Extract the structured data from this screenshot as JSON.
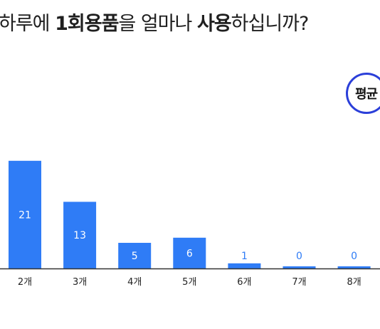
{
  "title": {
    "part1": "하루에 ",
    "part2": "1회용품",
    "part3": "을 얼마나 ",
    "part4": "사용",
    "part5": "하십니까?"
  },
  "badge": {
    "label": "평균"
  },
  "colors": {
    "bar": "#2f7cf6",
    "bar_label_inside": "#ffffff",
    "bar_label_outside": "#2f7cf6",
    "axis": "#333333",
    "badge_border": "#2b3fd9"
  },
  "chart_data": {
    "type": "bar",
    "title": "하루에 1회용품을 얼마나 사용하십니까?",
    "categories": [
      "2개",
      "3개",
      "4개",
      "5개",
      "6개",
      "7개",
      "8개"
    ],
    "values": [
      21,
      13,
      5,
      6,
      1,
      0,
      0
    ],
    "xlabel": "",
    "ylabel": "",
    "ylim": [
      0,
      25
    ],
    "grid": false,
    "legend": "none"
  }
}
